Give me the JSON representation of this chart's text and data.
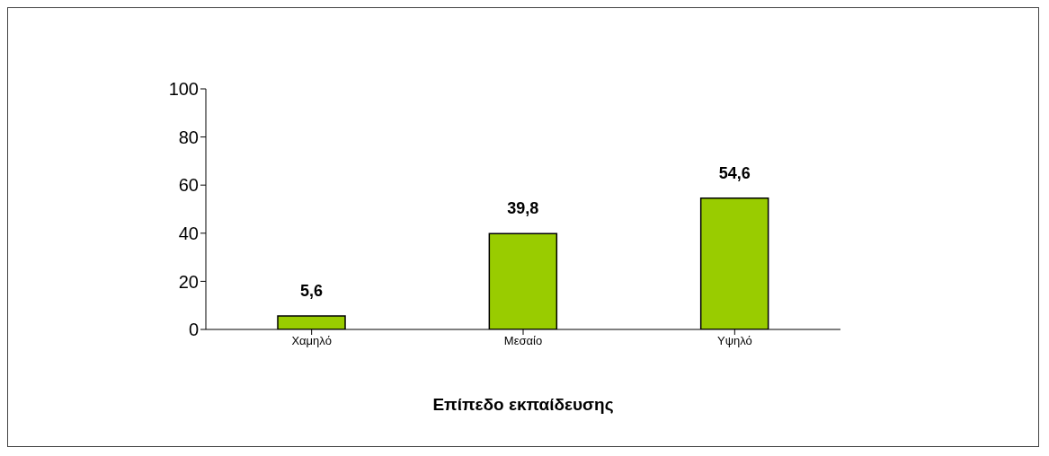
{
  "chart_data": {
    "type": "bar",
    "xlabel": "Επίπεδο εκπαίδευσης",
    "categories": [
      "Χαμηλό",
      "Μεσαίο",
      "Υψηλό"
    ],
    "values": [
      5.6,
      39.8,
      54.6
    ],
    "value_labels": [
      "5,6",
      "39,8",
      "54,6"
    ],
    "color": "#99cc00",
    "ylim": [
      0,
      100
    ],
    "yticks": [
      0,
      20,
      40,
      60,
      80,
      100
    ],
    "grid": false,
    "legend": false
  }
}
